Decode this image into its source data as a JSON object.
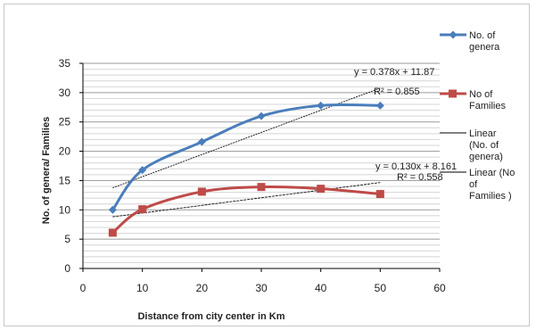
{
  "chart_data": {
    "type": "line",
    "xlabel": "Distance from city center in Km",
    "ylabel": "No. of genera/ Families",
    "xlim": [
      0,
      60
    ],
    "ylim": [
      0,
      35
    ],
    "x_ticks": [
      "0",
      "10",
      "20",
      "30",
      "40",
      "50",
      "60"
    ],
    "y_ticks": [
      "0",
      "5",
      "10",
      "15",
      "20",
      "25",
      "30",
      "35"
    ],
    "grid": "horizontal",
    "legend_position": "right",
    "series": [
      {
        "name": "No. of genera",
        "color": "#4a7ebb",
        "marker": "diamond",
        "x": [
          5,
          10,
          20,
          30,
          40,
          50
        ],
        "values": [
          10,
          16.8,
          21.6,
          26,
          27.8,
          27.8
        ]
      },
      {
        "name": "No of Families",
        "color": "#be4b48",
        "marker": "square",
        "x": [
          5,
          10,
          20,
          30,
          40,
          50
        ],
        "values": [
          6.1,
          10.1,
          13.1,
          13.9,
          13.6,
          12.7
        ]
      }
    ],
    "trendlines": [
      {
        "name": "Linear (No. of genera)",
        "slope": 0.378,
        "intercept": 11.87,
        "equation": "y = 0.378x + 11.87",
        "r2": "R² = 0.855"
      },
      {
        "name": "Linear (No of Families )",
        "slope": 0.13,
        "intercept": 8.161,
        "equation": "y = 0.130x + 8.161",
        "r2": "R² = 0.558"
      }
    ]
  },
  "legend": {
    "items": [
      {
        "label_lines": [
          "No. of",
          "genera"
        ],
        "color": "#4a7ebb",
        "kind": "diamond"
      },
      {
        "label_lines": [
          "No of",
          "Families"
        ],
        "color": "#be4b48",
        "kind": "square"
      },
      {
        "label_lines": [
          "Linear",
          "(No. of",
          "genera)"
        ],
        "color": "#000000",
        "kind": "line"
      },
      {
        "label_lines": [
          "Linear (No",
          "of",
          "Families )"
        ],
        "color": "#000000",
        "kind": "line"
      }
    ]
  }
}
